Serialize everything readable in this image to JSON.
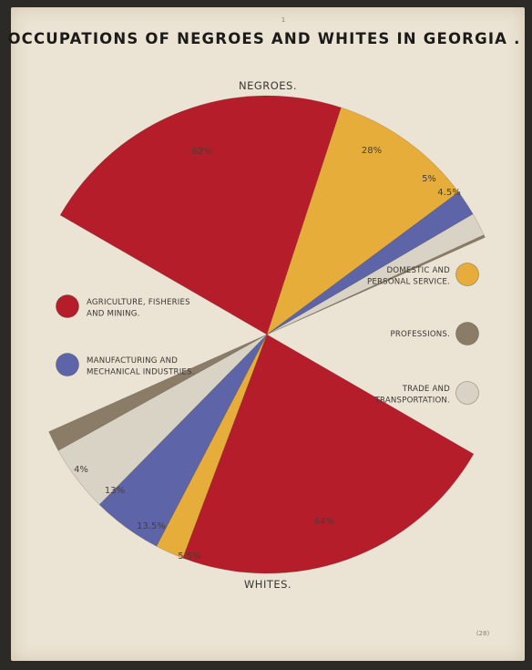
{
  "chart_data": {
    "type": "pie",
    "title": "OCCUPATIONS OF NEGROES AND WHITES IN GEORGIA .",
    "categories": [
      "AGRICULTURE, FISHERIES AND MINING.",
      "DOMESTIC AND PERSONAL SERVICE.",
      "MANUFACTURING AND MECHANICAL INDUSTRIES.",
      "TRADE AND TRANSPORTATION.",
      "PROFESSIONS."
    ],
    "colors": {
      "agriculture": "#b51d2b",
      "domestic": "#e6ad3a",
      "manufacturing": "#5d65a8",
      "trade": "#d8d3c5",
      "professions": "#8b7c68"
    },
    "series": [
      {
        "name": "NEGROES.",
        "values": [
          {
            "key": "agriculture",
            "value": 62,
            "label": "62%"
          },
          {
            "key": "domestic",
            "value": 28,
            "label": "28%"
          },
          {
            "key": "manufacturing",
            "value": 5,
            "label": "5%"
          },
          {
            "key": "trade",
            "value": 4.5,
            "label": "4.5%"
          },
          {
            "key": "professions",
            "value": 0.5,
            "label": ""
          }
        ]
      },
      {
        "name": "WHITES.",
        "values": [
          {
            "key": "agriculture",
            "value": 64,
            "label": "64%"
          },
          {
            "key": "domestic",
            "value": 5.5,
            "label": "5.5%"
          },
          {
            "key": "manufacturing",
            "value": 13.5,
            "label": "13.5%"
          },
          {
            "key": "trade",
            "value": 13,
            "label": "13%"
          },
          {
            "key": "professions",
            "value": 4,
            "label": "4%"
          }
        ]
      }
    ],
    "legend": {
      "left": [
        {
          "key": "agriculture",
          "lines": [
            "AGRICULTURE, FISHERIES",
            "AND MINING."
          ]
        },
        {
          "key": "manufacturing",
          "lines": [
            "MANUFACTURING AND",
            "MECHANICAL INDUSTRIES."
          ]
        }
      ],
      "right": [
        {
          "key": "domestic",
          "lines": [
            "DOMESTIC AND",
            "PERSONAL SERVICE."
          ]
        },
        {
          "key": "professions",
          "lines": [
            "PROFESSIONS."
          ]
        },
        {
          "key": "trade",
          "lines": [
            "TRADE AND",
            "TRANSPORTATION."
          ]
        }
      ]
    }
  },
  "page": {
    "plate_number": "1",
    "page_mark": "(28)"
  }
}
